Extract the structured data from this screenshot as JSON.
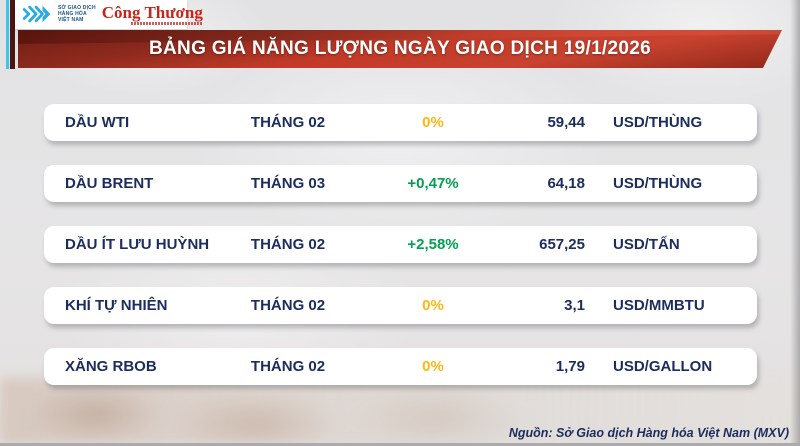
{
  "header": {
    "mxv_logo": {
      "org_line1": "SỞ GIAO DỊCH",
      "org_line2": "HÀNG HÓA",
      "org_line3": "VIỆT NAM"
    },
    "congthuong_logo": {
      "text": "Công Thương"
    },
    "title": "BẢNG GIÁ NĂNG LƯỢNG NGÀY GIAO DỊCH 19/1/2026"
  },
  "table": {
    "rows": [
      {
        "name": "DẦU WTI",
        "month": "THÁNG 02",
        "change": "0%",
        "change_color": "#fdb813",
        "price": "59,44",
        "unit": "USD/THÙNG"
      },
      {
        "name": "DẦU BRENT",
        "month": "THÁNG 03",
        "change": "+0,47%",
        "change_color": "#00a14f",
        "price": "64,18",
        "unit": "USD/THÙNG"
      },
      {
        "name": "DẦU ÍT LƯU HUỲNH",
        "month": "THÁNG 02",
        "change": "+2,58%",
        "change_color": "#00a14f",
        "price": "657,25",
        "unit": "USD/TẤN"
      },
      {
        "name": "KHÍ TỰ NHIÊN",
        "month": "THÁNG 02",
        "change": "0%",
        "change_color": "#fdb813",
        "price": "3,1",
        "unit": "USD/MMBTU"
      },
      {
        "name": "XĂNG RBOB",
        "month": "THÁNG 02",
        "change": "0%",
        "change_color": "#fdb813",
        "price": "1,79",
        "unit": "USD/GALLON"
      }
    ],
    "row_top_start": 104,
    "row_spacing": 61
  },
  "footer": {
    "source": "Nguồn: Sở Giao dịch Hàng hóa Việt Nam (MXV)"
  },
  "colors": {
    "navy_text": "#1b2d5e",
    "banner_red": "#c23a27",
    "up_green": "#00a14f",
    "flat_yellow": "#fdb813",
    "stripe_cyan": "#3fc4ef",
    "stripe_maroon": "#4e140d",
    "congthuong_red": "#c6251d"
  },
  "chart_data": {
    "type": "table",
    "title": "BẢNG GIÁ NĂNG LƯỢNG NGÀY GIAO DỊCH 19/1/2026",
    "columns": [
      "commodity",
      "contract_month",
      "change_pct",
      "price",
      "unit"
    ],
    "rows": [
      [
        "DẦU WTI",
        "THÁNG 02",
        "0%",
        "59,44",
        "USD/THÙNG"
      ],
      [
        "DẦU BRENT",
        "THÁNG 03",
        "+0,47%",
        "64,18",
        "USD/THÙNG"
      ],
      [
        "DẦU ÍT LƯU HUỲNH",
        "THÁNG 02",
        "+2,58%",
        "657,25",
        "USD/TẤN"
      ],
      [
        "KHÍ TỰ NHIÊN",
        "THÁNG 02",
        "0%",
        "3,1",
        "USD/MMBTU"
      ],
      [
        "XĂNG RBOB",
        "THÁNG 02",
        "0%",
        "1,79",
        "USD/GALLON"
      ]
    ],
    "source": "Nguồn: Sở Giao dịch Hàng hóa Việt Nam (MXV)"
  }
}
